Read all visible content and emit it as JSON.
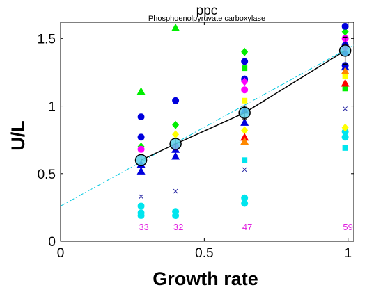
{
  "chart_data": {
    "type": "scatter",
    "title": "ppc",
    "subtitle": "Phosphoenolpyruvate carboxylase",
    "xlabel": "Growth rate",
    "ylabel": "U/L",
    "xlim": [
      0,
      1.02
    ],
    "ylim": [
      0,
      1.62
    ],
    "xticks": [
      0,
      0.5,
      1
    ],
    "xtick_labels": [
      "0",
      "0.5",
      "1"
    ],
    "yticks": [
      0,
      0.5,
      1,
      1.5
    ],
    "ytick_labels": [
      "0",
      "0.5",
      "1",
      "1.5"
    ],
    "grid": false,
    "legend": "none",
    "growth_rates": [
      0.28,
      0.4,
      0.64,
      0.99
    ],
    "sample_counts": [
      "33",
      "32",
      "47",
      "59"
    ],
    "mean_line": {
      "x": [
        0.28,
        0.4,
        0.64,
        0.99
      ],
      "y": [
        0.6,
        0.72,
        0.95,
        1.41
      ],
      "yerr": [
        0.04,
        0.04,
        0.05,
        0.1
      ]
    },
    "fit_line": {
      "x": [
        0,
        1.02
      ],
      "y": [
        0.26,
        1.45
      ]
    },
    "series": [
      {
        "color": "#00ee00",
        "marker": "triangle",
        "x": [
          0.28,
          0.4
        ],
        "y": [
          1.11,
          1.58
        ]
      },
      {
        "color": "#00ee00",
        "marker": "diamond",
        "x": [
          0.28,
          0.4,
          0.64,
          0.99
        ],
        "y": [
          0.7,
          0.86,
          1.4,
          1.55
        ]
      },
      {
        "color": "#00ee00",
        "marker": "square",
        "x": [
          0.64,
          0.99
        ],
        "y": [
          1.28,
          1.13
        ]
      },
      {
        "color": "#0000dd",
        "marker": "circle",
        "x": [
          0.28,
          0.28,
          0.4,
          0.64,
          0.64,
          0.99,
          0.99,
          0.99
        ],
        "y": [
          0.92,
          0.77,
          1.04,
          1.33,
          1.2,
          1.59,
          1.45,
          1.3
        ]
      },
      {
        "color": "#0000dd",
        "marker": "triangle",
        "x": [
          0.28,
          0.28,
          0.4,
          0.4,
          0.64,
          0.64,
          0.99,
          0.99
        ],
        "y": [
          0.52,
          0.57,
          0.63,
          0.68,
          0.88,
          0.97,
          1.4,
          1.29
        ]
      },
      {
        "color": "#2020a0",
        "marker": "x",
        "x": [
          0.28,
          0.4,
          0.64,
          0.99
        ],
        "y": [
          0.33,
          0.37,
          0.53,
          0.98
        ]
      },
      {
        "color": "#ff00ff",
        "marker": "circle",
        "x": [
          0.28,
          0.4,
          0.64,
          0.99
        ],
        "y": [
          0.68,
          0.7,
          1.12,
          1.5
        ]
      },
      {
        "color": "#ff00ff",
        "marker": "diamond",
        "x": [
          0.64,
          0.99
        ],
        "y": [
          1.18,
          1.43
        ]
      },
      {
        "color": "#00e5ee",
        "marker": "circle",
        "x": [
          0.28,
          0.28,
          0.28,
          0.4,
          0.4,
          0.64,
          0.64,
          0.99,
          0.99
        ],
        "y": [
          0.26,
          0.21,
          0.19,
          0.22,
          0.19,
          0.32,
          0.28,
          0.81,
          0.77
        ]
      },
      {
        "color": "#00e5ee",
        "marker": "square",
        "x": [
          0.64,
          0.99
        ],
        "y": [
          0.6,
          0.69
        ]
      },
      {
        "color": "#ffff00",
        "marker": "diamond",
        "x": [
          0.4,
          0.64,
          0.99
        ],
        "y": [
          0.79,
          0.82,
          0.84
        ]
      },
      {
        "color": "#ffff00",
        "marker": "square",
        "x": [
          0.64,
          0.99
        ],
        "y": [
          1.04,
          1.22
        ]
      },
      {
        "color": "#ff0000",
        "marker": "triangle",
        "x": [
          0.64,
          0.99
        ],
        "y": [
          0.77,
          1.17
        ]
      },
      {
        "color": "#ff8800",
        "marker": "triangle",
        "x": [
          0.64,
          0.99
        ],
        "y": [
          0.74,
          1.26
        ]
      }
    ],
    "colors": {
      "mean_line": "#000000",
      "mean_marker_fill": "#5ccfe6",
      "fit_line": "#00c8e0",
      "count_text": "#e020e0"
    }
  }
}
